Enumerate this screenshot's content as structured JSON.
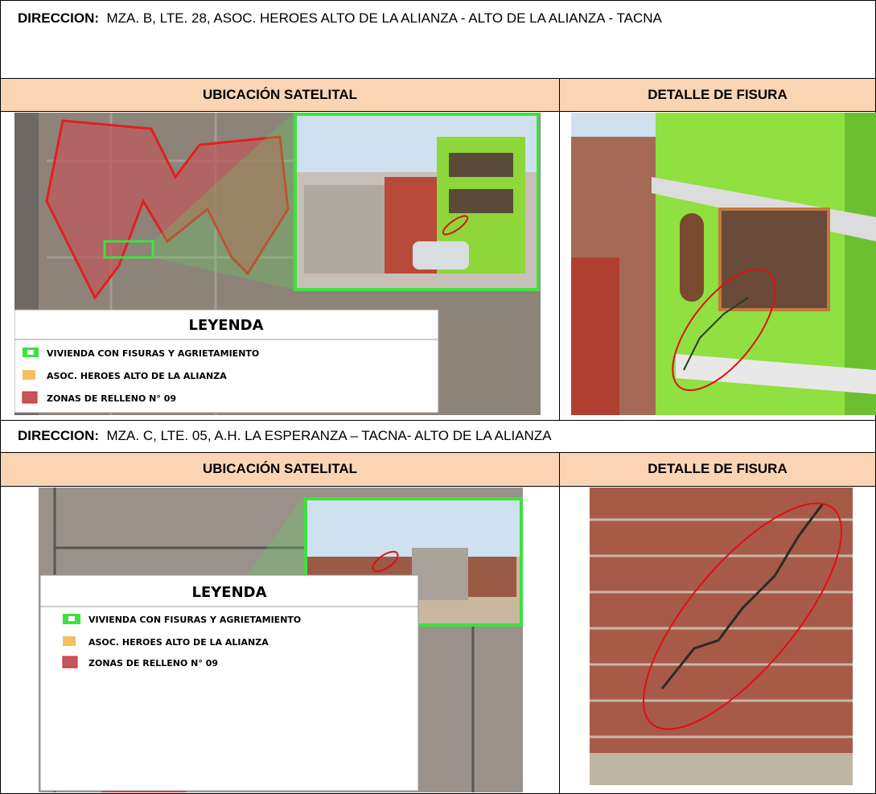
{
  "sections": [
    {
      "address_label": "DIRECCION:",
      "address": "MZA. B, LTE. 28, ASOC. HEROES ALTO DE LA ALIANZA - ALTO DE LA ALIANZA - TACNA",
      "satellite_header": "UBICACIÓN SATELITAL",
      "detail_header": "DETALLE DE FISURA",
      "legend": {
        "title": "LEYENDA",
        "items": [
          "VIVIENDA CON FISURAS Y AGRIETAMIENTO",
          "ASOC. HEROES ALTO DE LA ALIANZA",
          "ZONAS DE RELLENO N° 09"
        ]
      }
    },
    {
      "address_label": "DIRECCION:",
      "address": "MZA. C, LTE. 05, A.H. LA ESPERANZA – TACNA- ALTO DE LA ALIANZA",
      "satellite_header": "UBICACIÓN SATELITAL",
      "detail_header": "DETALLE DE FISURA",
      "legend": {
        "title": "LEYENDA",
        "items": [
          "VIVIENDA CON FISURAS Y AGRIETAMIENTO",
          "ASOC. HEROES ALTO DE LA ALIANZA",
          "ZONAS DE RELLENO N° 09"
        ]
      }
    }
  ]
}
